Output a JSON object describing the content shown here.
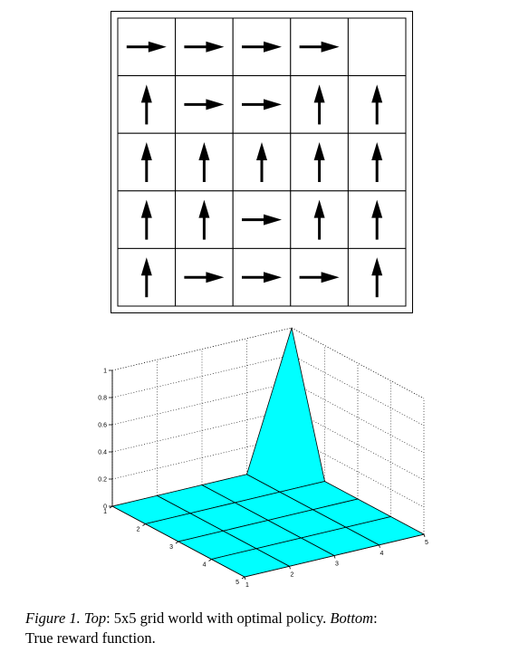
{
  "grid": {
    "size": 5,
    "policy": [
      [
        "right",
        "right",
        "right",
        "right",
        "none"
      ],
      [
        "up",
        "right",
        "right",
        "up",
        "up"
      ],
      [
        "up",
        "up",
        "up",
        "up",
        "up"
      ],
      [
        "up",
        "up",
        "right",
        "up",
        "up"
      ],
      [
        "up",
        "right",
        "right",
        "right",
        "up"
      ]
    ]
  },
  "chart_data": {
    "type": "surface",
    "z_ticks": [
      "0",
      "0.2",
      "0.4",
      "0.6",
      "0.8",
      "1"
    ],
    "z_lim": [
      0,
      1
    ],
    "row_ticks": [
      "1",
      "2",
      "3",
      "4",
      "5"
    ],
    "col_ticks": [
      "1",
      "2",
      "3",
      "4",
      "5"
    ],
    "surface_color": "#00ffff",
    "grid_lines": "dotted",
    "reward": [
      [
        0,
        0,
        0,
        0,
        1
      ],
      [
        0,
        0,
        0,
        0,
        0
      ],
      [
        0,
        0,
        0,
        0,
        0
      ],
      [
        0,
        0,
        0,
        0,
        0
      ],
      [
        0,
        0,
        0,
        0,
        0
      ]
    ]
  },
  "caption": {
    "label": "Figure 1.",
    "top_label": "Top",
    "top_text": ": 5x5 grid world with optimal policy.",
    "bottom_label": "Bottom",
    "bottom_text": ":",
    "line2": "True reward function."
  }
}
